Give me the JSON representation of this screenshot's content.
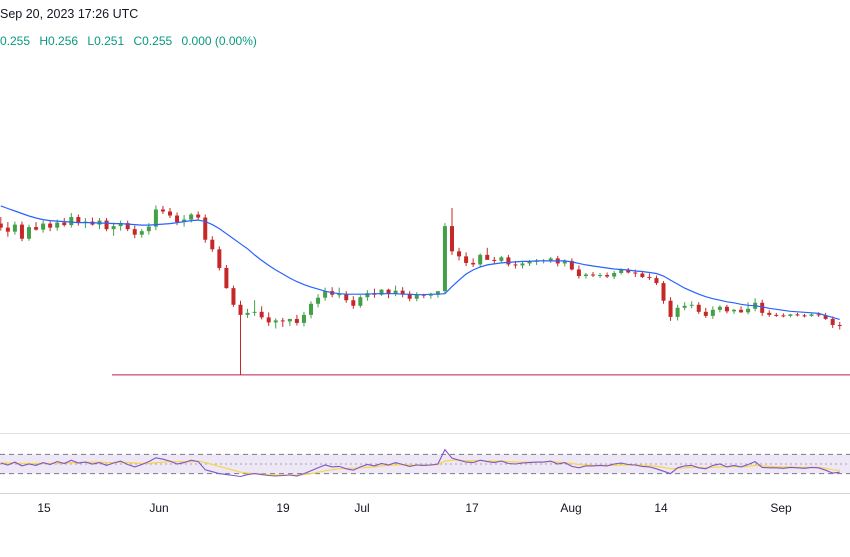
{
  "header": {
    "date_text": "Sep 20, 2023 17:26 UTC",
    "open": "0.255",
    "high": "H0.256",
    "low": "L0.251",
    "close": "C0.255",
    "change": "0.000 (0.00%)"
  },
  "colors": {
    "up": "#089981",
    "up_body": "#43a047",
    "down": "#c62828",
    "ma_line": "#2962ff",
    "level_line": "#c2185b",
    "rsi_line": "#7e57c2",
    "rsi_signal": "#f9d648",
    "rsi_band": "#ede7f6",
    "grid_axis": "#d1d4dc"
  },
  "chart_data": [
    {
      "type": "candlestick",
      "x_tick_labels": [
        "15",
        "Jun",
        "19",
        "Jul",
        "17",
        "Aug",
        "14",
        "Sep"
      ],
      "ylim": [
        0.243,
        0.29
      ],
      "horizontal_level": 0.246,
      "candles": [
        [
          0.276,
          0.2773,
          0.2746,
          0.2752
        ],
        [
          0.2752,
          0.2763,
          0.2734,
          0.2744
        ],
        [
          0.2744,
          0.2764,
          0.2738,
          0.2758
        ],
        [
          0.2758,
          0.2764,
          0.2725,
          0.273
        ],
        [
          0.273,
          0.2758,
          0.2726,
          0.2753
        ],
        [
          0.2753,
          0.2763,
          0.2746,
          0.2748
        ],
        [
          0.2748,
          0.2766,
          0.2742,
          0.276
        ],
        [
          0.276,
          0.2765,
          0.2745,
          0.2752
        ],
        [
          0.2752,
          0.2768,
          0.2746,
          0.2762
        ],
        [
          0.2762,
          0.2771,
          0.2754,
          0.2757
        ],
        [
          0.2757,
          0.2781,
          0.2752,
          0.2773
        ],
        [
          0.2773,
          0.2778,
          0.2756,
          0.2762
        ],
        [
          0.2762,
          0.2771,
          0.2751,
          0.2764
        ],
        [
          0.2764,
          0.2772,
          0.2756,
          0.2758
        ],
        [
          0.2758,
          0.2771,
          0.2749,
          0.2766
        ],
        [
          0.2766,
          0.2771,
          0.2745,
          0.2749
        ],
        [
          0.2749,
          0.2762,
          0.2736,
          0.2755
        ],
        [
          0.2755,
          0.2766,
          0.2746,
          0.2761
        ],
        [
          0.2761,
          0.2766,
          0.2745,
          0.2749
        ],
        [
          0.2749,
          0.2756,
          0.2731,
          0.2738
        ],
        [
          0.2738,
          0.2749,
          0.2732,
          0.2745
        ],
        [
          0.2745,
          0.2761,
          0.2738,
          0.2754
        ],
        [
          0.2754,
          0.2796,
          0.2747,
          0.2788
        ],
        [
          0.2788,
          0.2795,
          0.2779,
          0.2784
        ],
        [
          0.2784,
          0.2791,
          0.2771,
          0.2776
        ],
        [
          0.2776,
          0.2782,
          0.2757,
          0.2763
        ],
        [
          0.2763,
          0.2777,
          0.2754,
          0.2768
        ],
        [
          0.2768,
          0.2781,
          0.2762,
          0.2778
        ],
        [
          0.2778,
          0.2784,
          0.2766,
          0.2772
        ],
        [
          0.2772,
          0.2778,
          0.2722,
          0.2728
        ],
        [
          0.2728,
          0.2735,
          0.2704,
          0.2709
        ],
        [
          0.2709,
          0.2715,
          0.2667,
          0.2672
        ],
        [
          0.2672,
          0.2678,
          0.2631,
          0.2632
        ],
        [
          0.2632,
          0.2637,
          0.2595,
          0.2599
        ],
        [
          0.2599,
          0.2607,
          0.246,
          0.2579
        ],
        [
          0.2579,
          0.2591,
          0.2573,
          0.2583
        ],
        [
          0.2583,
          0.2608,
          0.2577,
          0.2585
        ],
        [
          0.2585,
          0.2596,
          0.257,
          0.2574
        ],
        [
          0.2574,
          0.2584,
          0.2557,
          0.2564
        ],
        [
          0.2564,
          0.2572,
          0.2552,
          0.2568
        ],
        [
          0.2568,
          0.2573,
          0.2555,
          0.2566
        ],
        [
          0.2566,
          0.2571,
          0.2557,
          0.2571
        ],
        [
          0.2571,
          0.2579,
          0.2558,
          0.2563
        ],
        [
          0.2563,
          0.2585,
          0.2556,
          0.2579
        ],
        [
          0.2579,
          0.2606,
          0.2572,
          0.2601
        ],
        [
          0.2601,
          0.262,
          0.2594,
          0.2613
        ],
        [
          0.2613,
          0.2633,
          0.2607,
          0.2626
        ],
        [
          0.2626,
          0.2634,
          0.2614,
          0.2619
        ],
        [
          0.2619,
          0.2633,
          0.2612,
          0.262
        ],
        [
          0.262,
          0.2626,
          0.2603,
          0.2608
        ],
        [
          0.2608,
          0.2616,
          0.2591,
          0.2597
        ],
        [
          0.2597,
          0.2618,
          0.2593,
          0.2614
        ],
        [
          0.2614,
          0.2628,
          0.2607,
          0.2622
        ],
        [
          0.2622,
          0.2631,
          0.2613,
          0.2619
        ],
        [
          0.2619,
          0.263,
          0.2617,
          0.2629
        ],
        [
          0.2629,
          0.2631,
          0.2612,
          0.2621
        ],
        [
          0.2621,
          0.2637,
          0.2616,
          0.2627
        ],
        [
          0.2627,
          0.2634,
          0.2614,
          0.262
        ],
        [
          0.262,
          0.2626,
          0.2606,
          0.2611
        ],
        [
          0.2611,
          0.2624,
          0.2606,
          0.2619
        ],
        [
          0.2619,
          0.2621,
          0.2612,
          0.2618
        ],
        [
          0.2618,
          0.2623,
          0.2611,
          0.2619
        ],
        [
          0.2619,
          0.2626,
          0.2613,
          0.2626
        ],
        [
          0.2626,
          0.2761,
          0.262,
          0.2755
        ],
        [
          0.2755,
          0.2791,
          0.2698,
          0.2705
        ],
        [
          0.2705,
          0.2712,
          0.2687,
          0.2695
        ],
        [
          0.2695,
          0.2703,
          0.2676,
          0.2682
        ],
        [
          0.2682,
          0.2691,
          0.2674,
          0.2679
        ],
        [
          0.2679,
          0.2701,
          0.2674,
          0.2698
        ],
        [
          0.2698,
          0.2712,
          0.2689,
          0.2688
        ],
        [
          0.2688,
          0.2694,
          0.2679,
          0.2686
        ],
        [
          0.2686,
          0.2696,
          0.2681,
          0.2693
        ],
        [
          0.2693,
          0.2698,
          0.2675,
          0.2679
        ],
        [
          0.2679,
          0.2686,
          0.2671,
          0.2677
        ],
        [
          0.2677,
          0.2685,
          0.2671,
          0.2681
        ],
        [
          0.2681,
          0.2688,
          0.2676,
          0.2684
        ],
        [
          0.2684,
          0.269,
          0.2678,
          0.2686
        ],
        [
          0.2686,
          0.269,
          0.2681,
          0.2687
        ],
        [
          0.2687,
          0.2694,
          0.2682,
          0.2691
        ],
        [
          0.2691,
          0.2696,
          0.2675,
          0.2681
        ],
        [
          0.2681,
          0.2689,
          0.2675,
          0.2686
        ],
        [
          0.2686,
          0.2691,
          0.2667,
          0.2669
        ],
        [
          0.2669,
          0.2677,
          0.2651,
          0.2656
        ],
        [
          0.2656,
          0.2662,
          0.2651,
          0.2659
        ],
        [
          0.2659,
          0.2664,
          0.2654,
          0.2657
        ],
        [
          0.2657,
          0.2662,
          0.2652,
          0.2658
        ],
        [
          0.2658,
          0.2663,
          0.2652,
          0.2655
        ],
        [
          0.2655,
          0.2666,
          0.265,
          0.2662
        ],
        [
          0.2662,
          0.2671,
          0.2659,
          0.2668
        ],
        [
          0.2668,
          0.2672,
          0.2661,
          0.2663
        ],
        [
          0.2663,
          0.2669,
          0.2654,
          0.2661
        ],
        [
          0.2661,
          0.2665,
          0.2652,
          0.2654
        ],
        [
          0.2654,
          0.2661,
          0.2648,
          0.2652
        ],
        [
          0.2652,
          0.2657,
          0.2638,
          0.2642
        ],
        [
          0.2642,
          0.2646,
          0.2601,
          0.2607
        ],
        [
          0.2607,
          0.2614,
          0.2567,
          0.2575
        ],
        [
          0.2575,
          0.2599,
          0.2568,
          0.2593
        ],
        [
          0.2593,
          0.2604,
          0.2588,
          0.2597
        ],
        [
          0.2597,
          0.2606,
          0.2592,
          0.2599
        ],
        [
          0.2599,
          0.2604,
          0.2581,
          0.2585
        ],
        [
          0.2585,
          0.2593,
          0.2573,
          0.2577
        ],
        [
          0.2577,
          0.2596,
          0.2571,
          0.2589
        ],
        [
          0.2589,
          0.2598,
          0.2584,
          0.2595
        ],
        [
          0.2595,
          0.2599,
          0.2582,
          0.2586
        ],
        [
          0.2586,
          0.2591,
          0.2581,
          0.2589
        ],
        [
          0.2589,
          0.2596,
          0.2583,
          0.2584
        ],
        [
          0.2584,
          0.2604,
          0.258,
          0.2591
        ],
        [
          0.2591,
          0.2612,
          0.2586,
          0.2603
        ],
        [
          0.2603,
          0.2609,
          0.2577,
          0.2583
        ],
        [
          0.2583,
          0.2588,
          0.2575,
          0.2579
        ],
        [
          0.2579,
          0.2583,
          0.2575,
          0.2578
        ],
        [
          0.2578,
          0.2582,
          0.2574,
          0.2577
        ],
        [
          0.2577,
          0.2581,
          0.2574,
          0.258
        ],
        [
          0.258,
          0.2583,
          0.2576,
          0.2578
        ],
        [
          0.2578,
          0.2581,
          0.2574,
          0.2577
        ],
        [
          0.2577,
          0.2582,
          0.2575,
          0.258
        ],
        [
          0.258,
          0.2584,
          0.2575,
          0.2578
        ],
        [
          0.2578,
          0.2583,
          0.2569,
          0.2571
        ],
        [
          0.2571,
          0.2576,
          0.2553,
          0.2559
        ],
        [
          0.2559,
          0.2565,
          0.255,
          0.2557
        ]
      ],
      "ma": [
        0.2795,
        0.279,
        0.2785,
        0.278,
        0.2775,
        0.2771,
        0.2768,
        0.2766,
        0.2765,
        0.2764,
        0.2763,
        0.2762,
        0.2762,
        0.2762,
        0.2761,
        0.2761,
        0.276,
        0.276,
        0.2759,
        0.2758,
        0.2757,
        0.2757,
        0.2758,
        0.2759,
        0.276,
        0.2762,
        0.2764,
        0.2766,
        0.2767,
        0.2764,
        0.2758,
        0.275,
        0.274,
        0.273,
        0.272,
        0.271,
        0.2698,
        0.2687,
        0.2677,
        0.2668,
        0.266,
        0.2652,
        0.2645,
        0.2639,
        0.2634,
        0.263,
        0.2626,
        0.2623,
        0.2621,
        0.262,
        0.262,
        0.262,
        0.262,
        0.2621,
        0.2621,
        0.2621,
        0.2621,
        0.262,
        0.262,
        0.2619,
        0.2619,
        0.262,
        0.262,
        0.2621,
        0.2635,
        0.2648,
        0.266,
        0.2668,
        0.2674,
        0.2678,
        0.268,
        0.2682,
        0.2683,
        0.2684,
        0.2685,
        0.2685,
        0.2686,
        0.2686,
        0.2686,
        0.2686,
        0.2686,
        0.2684,
        0.2681,
        0.2678,
        0.2676,
        0.2674,
        0.2672,
        0.267,
        0.2669,
        0.2668,
        0.2666,
        0.2665,
        0.2663,
        0.2661,
        0.2656,
        0.2648,
        0.264,
        0.2632,
        0.2626,
        0.262,
        0.2615,
        0.2611,
        0.2608,
        0.2605,
        0.2603,
        0.26,
        0.2598,
        0.2597,
        0.2595,
        0.2592,
        0.259,
        0.2588,
        0.2586,
        0.2585,
        0.2584,
        0.2583,
        0.2582,
        0.2578,
        0.2574,
        0.257
      ]
    },
    {
      "type": "line",
      "name": "oscillator",
      "ylim": [
        0,
        100
      ],
      "bands": [
        70,
        30
      ],
      "mid": 50,
      "series_main": [
        52,
        48,
        54,
        46,
        50,
        47,
        53,
        49,
        55,
        51,
        58,
        52,
        54,
        50,
        53,
        47,
        52,
        56,
        49,
        44,
        49,
        55,
        63,
        60,
        56,
        50,
        53,
        58,
        55,
        38,
        34,
        30,
        28,
        26,
        24,
        28,
        30,
        28,
        26,
        25,
        26,
        27,
        25,
        30,
        36,
        42,
        48,
        44,
        45,
        40,
        37,
        44,
        49,
        46,
        51,
        48,
        53,
        49,
        45,
        48,
        47,
        48,
        50,
        80,
        62,
        58,
        54,
        53,
        58,
        55,
        53,
        56,
        51,
        50,
        52,
        53,
        54,
        54,
        56,
        50,
        53,
        45,
        42,
        46,
        46,
        47,
        46,
        50,
        52,
        49,
        48,
        45,
        44,
        40,
        35,
        30,
        42,
        46,
        47,
        42,
        40,
        47,
        50,
        44,
        47,
        44,
        49,
        55,
        43,
        42,
        42,
        41,
        43,
        42,
        41,
        43,
        42,
        37,
        31,
        33
      ],
      "series_signal": [
        52,
        52,
        52,
        51,
        51,
        51,
        51,
        51,
        51,
        52,
        53,
        53,
        54,
        54,
        54,
        53,
        53,
        54,
        53,
        52,
        51,
        51,
        53,
        54,
        55,
        55,
        55,
        55,
        56,
        53,
        49,
        45,
        41,
        37,
        33,
        31,
        30,
        29,
        28,
        27,
        27,
        27,
        27,
        28,
        30,
        33,
        36,
        38,
        40,
        41,
        41,
        42,
        43,
        44,
        46,
        47,
        48,
        49,
        48,
        48,
        48,
        48,
        49,
        56,
        58,
        58,
        57,
        57,
        57,
        56,
        56,
        56,
        55,
        54,
        54,
        54,
        54,
        54,
        55,
        54,
        53,
        51,
        49,
        48,
        47,
        47,
        47,
        47,
        48,
        48,
        48,
        47,
        46,
        45,
        43,
        40,
        41,
        42,
        43,
        43,
        42,
        43,
        44,
        44,
        45,
        44,
        45,
        47,
        46,
        45,
        44,
        44,
        44,
        43,
        43,
        43,
        43,
        41,
        38,
        37
      ]
    }
  ]
}
